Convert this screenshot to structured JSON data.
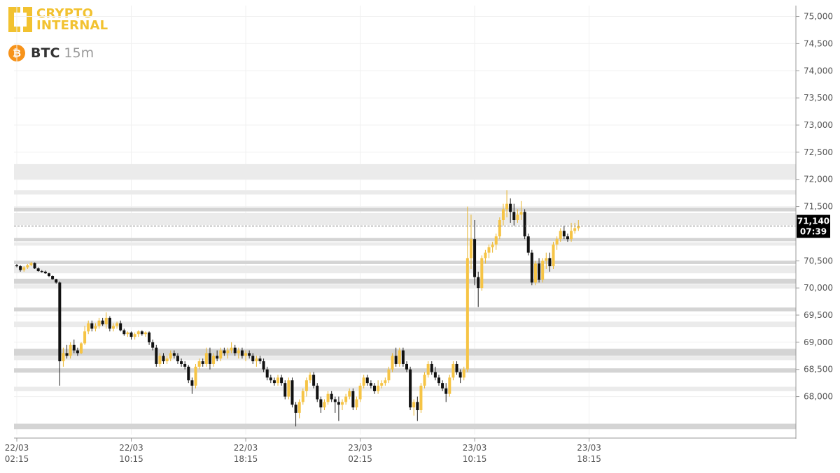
{
  "brand": {
    "line1": "CRYPTO",
    "line2": "INTERNAL",
    "color": "#f2c230"
  },
  "symbol": {
    "name": "BTC",
    "timeframe": "15m",
    "coin_icon": "bitcoin-icon",
    "coin_glyph": "₿"
  },
  "colors": {
    "up": "#f6c445",
    "down": "#111111",
    "zone": "#d4d4d4",
    "zone_light": "#ebebeb"
  },
  "current": {
    "price": "71,140",
    "countdown": "07:39"
  },
  "chart_data": {
    "type": "candlestick",
    "ylim": [
      67300,
      75200
    ],
    "y_ticks": [
      "75,000",
      "74,500",
      "74,000",
      "73,500",
      "73,000",
      "72,500",
      "72,000",
      "71,500",
      "70,500",
      "70,000",
      "69,500",
      "69,000",
      "68,500",
      "68,000"
    ],
    "y_tick_values": [
      75000,
      74500,
      74000,
      73500,
      73000,
      72500,
      72000,
      71500,
      70500,
      70000,
      69500,
      69000,
      68500,
      68000
    ],
    "x_ticks": [
      {
        "date": "22/03",
        "time": "02:15",
        "index": 0
      },
      {
        "date": "22/03",
        "time": "10:15",
        "index": 32
      },
      {
        "date": "22/03",
        "time": "18:15",
        "index": 64
      },
      {
        "date": "23/03",
        "time": "02:15",
        "index": 96
      },
      {
        "date": "23/03",
        "time": "10:15",
        "index": 128
      },
      {
        "date": "23/03",
        "time": "18:15",
        "index": 160
      }
    ],
    "zones": [
      {
        "low": 72000,
        "high": 72280,
        "strength": "light"
      },
      {
        "low": 71720,
        "high": 71800,
        "strength": "light"
      },
      {
        "low": 71410,
        "high": 71480,
        "strength": "strong"
      },
      {
        "low": 71160,
        "high": 71380,
        "strength": "light"
      },
      {
        "low": 70860,
        "high": 70920,
        "strength": "strong"
      },
      {
        "low": 70780,
        "high": 70840,
        "strength": "light"
      },
      {
        "low": 70440,
        "high": 70500,
        "strength": "strong"
      },
      {
        "low": 70270,
        "high": 70410,
        "strength": "light"
      },
      {
        "low": 70080,
        "high": 70170,
        "strength": "strong"
      },
      {
        "low": 69990,
        "high": 70070,
        "strength": "light"
      },
      {
        "low": 69570,
        "high": 69640,
        "strength": "strong"
      },
      {
        "low": 69280,
        "high": 69380,
        "strength": "light"
      },
      {
        "low": 68750,
        "high": 68880,
        "strength": "strong"
      },
      {
        "low": 68670,
        "high": 68740,
        "strength": "light"
      },
      {
        "low": 68440,
        "high": 68520,
        "strength": "strong"
      },
      {
        "low": 68100,
        "high": 68180,
        "strength": "light"
      },
      {
        "low": 67400,
        "high": 67500,
        "strength": "strong"
      }
    ],
    "candles": [
      [
        70420,
        70440,
        70380,
        70400
      ],
      [
        70400,
        70420,
        70300,
        70330
      ],
      [
        70330,
        70400,
        70300,
        70380
      ],
      [
        70380,
        70440,
        70350,
        70420
      ],
      [
        70420,
        70480,
        70400,
        70460
      ],
      [
        70460,
        70470,
        70350,
        70360
      ],
      [
        70360,
        70380,
        70300,
        70310
      ],
      [
        70310,
        70330,
        70280,
        70300
      ],
      [
        70300,
        70320,
        70260,
        70270
      ],
      [
        70270,
        70280,
        70200,
        70220
      ],
      [
        70220,
        70230,
        70150,
        70160
      ],
      [
        70160,
        70170,
        70080,
        70100
      ],
      [
        70100,
        70120,
        68200,
        68650
      ],
      [
        68650,
        68900,
        68550,
        68800
      ],
      [
        68800,
        68950,
        68700,
        68750
      ],
      [
        68750,
        69000,
        68700,
        68950
      ],
      [
        68950,
        69050,
        68800,
        68850
      ],
      [
        68850,
        68900,
        68750,
        68800
      ],
      [
        68800,
        69000,
        68780,
        68980
      ],
      [
        68980,
        69300,
        68950,
        69200
      ],
      [
        69200,
        69400,
        69150,
        69350
      ],
      [
        69350,
        69400,
        69200,
        69250
      ],
      [
        69250,
        69350,
        69200,
        69300
      ],
      [
        69300,
        69450,
        69250,
        69400
      ],
      [
        69400,
        69450,
        69300,
        69330
      ],
      [
        69330,
        69550,
        69250,
        69450
      ],
      [
        69450,
        69480,
        69200,
        69250
      ],
      [
        69250,
        69350,
        69200,
        69300
      ],
      [
        69300,
        69380,
        69250,
        69350
      ],
      [
        69350,
        69400,
        69200,
        69220
      ],
      [
        69220,
        69250,
        69120,
        69150
      ],
      [
        69150,
        69200,
        69100,
        69180
      ],
      [
        69180,
        69200,
        69050,
        69100
      ],
      [
        69100,
        69180,
        69050,
        69150
      ],
      [
        69150,
        69220,
        69100,
        69200
      ],
      [
        69200,
        69220,
        69120,
        69150
      ],
      [
        69150,
        69200,
        69100,
        69180
      ],
      [
        69180,
        69200,
        68950,
        69000
      ],
      [
        69000,
        69050,
        68850,
        68900
      ],
      [
        68900,
        68950,
        68550,
        68600
      ],
      [
        68600,
        68800,
        68550,
        68750
      ],
      [
        68750,
        68800,
        68600,
        68650
      ],
      [
        68650,
        68750,
        68600,
        68700
      ],
      [
        68700,
        68850,
        68650,
        68800
      ],
      [
        68800,
        68850,
        68700,
        68750
      ],
      [
        68750,
        68800,
        68600,
        68650
      ],
      [
        68650,
        68700,
        68550,
        68600
      ],
      [
        68600,
        68650,
        68500,
        68550
      ],
      [
        68550,
        68580,
        68250,
        68300
      ],
      [
        68300,
        68350,
        68050,
        68200
      ],
      [
        68200,
        68600,
        68150,
        68550
      ],
      [
        68550,
        68700,
        68500,
        68650
      ],
      [
        68650,
        68700,
        68550,
        68600
      ],
      [
        68600,
        68900,
        68550,
        68800
      ],
      [
        68800,
        68900,
        68500,
        68600
      ],
      [
        68600,
        68800,
        68550,
        68750
      ],
      [
        68750,
        68850,
        68650,
        68700
      ],
      [
        68700,
        68900,
        68650,
        68850
      ],
      [
        68850,
        68900,
        68750,
        68800
      ],
      [
        68800,
        68900,
        68700,
        68850
      ],
      [
        68850,
        69000,
        68800,
        68900
      ],
      [
        68900,
        68950,
        68750,
        68800
      ],
      [
        68800,
        68900,
        68700,
        68850
      ],
      [
        68850,
        68900,
        68700,
        68750
      ],
      [
        68750,
        68850,
        68650,
        68800
      ],
      [
        68800,
        68850,
        68700,
        68750
      ],
      [
        68750,
        68800,
        68600,
        68650
      ],
      [
        68650,
        68750,
        68550,
        68700
      ],
      [
        68700,
        68750,
        68600,
        68650
      ],
      [
        68650,
        68700,
        68450,
        68500
      ],
      [
        68500,
        68550,
        68300,
        68350
      ],
      [
        68350,
        68400,
        68250,
        68300
      ],
      [
        68300,
        68350,
        68200,
        68250
      ],
      [
        68250,
        68400,
        68200,
        68350
      ],
      [
        68350,
        68400,
        68200,
        68250
      ],
      [
        68250,
        68300,
        67950,
        68000
      ],
      [
        68000,
        68350,
        67950,
        68300
      ],
      [
        68300,
        68350,
        67800,
        67850
      ],
      [
        67850,
        67900,
        67450,
        67700
      ],
      [
        67700,
        67950,
        67600,
        67900
      ],
      [
        67900,
        68150,
        67850,
        68100
      ],
      [
        68100,
        68350,
        68000,
        68300
      ],
      [
        68300,
        68450,
        68250,
        68400
      ],
      [
        68400,
        68450,
        68150,
        68200
      ],
      [
        68200,
        68250,
        67900,
        67950
      ],
      [
        67950,
        68000,
        67700,
        67800
      ],
      [
        67800,
        67950,
        67750,
        67900
      ],
      [
        67900,
        68100,
        67850,
        68050
      ],
      [
        68050,
        68100,
        67900,
        67950
      ],
      [
        67950,
        68000,
        67700,
        67900
      ],
      [
        67900,
        68000,
        67550,
        67850
      ],
      [
        67850,
        67950,
        67750,
        67900
      ],
      [
        67900,
        68050,
        67850,
        68000
      ],
      [
        68000,
        68150,
        67950,
        68100
      ],
      [
        68100,
        68150,
        67750,
        67800
      ],
      [
        67800,
        68000,
        67750,
        67950
      ],
      [
        67950,
        68250,
        67900,
        68200
      ],
      [
        68200,
        68400,
        68150,
        68350
      ],
      [
        68350,
        68400,
        68200,
        68250
      ],
      [
        68250,
        68300,
        68150,
        68200
      ],
      [
        68200,
        68250,
        68050,
        68100
      ],
      [
        68100,
        68300,
        68050,
        68200
      ],
      [
        68200,
        68300,
        68150,
        68250
      ],
      [
        68250,
        68350,
        68200,
        68300
      ],
      [
        68300,
        68550,
        68250,
        68500
      ],
      [
        68500,
        68800,
        68450,
        68750
      ],
      [
        68750,
        68900,
        68550,
        68600
      ],
      [
        68600,
        68900,
        68550,
        68850
      ],
      [
        68850,
        68900,
        68550,
        68600
      ],
      [
        68600,
        68650,
        68450,
        68500
      ],
      [
        68500,
        68550,
        67750,
        67800
      ],
      [
        67800,
        67950,
        67650,
        67900
      ],
      [
        67900,
        68000,
        67550,
        67750
      ],
      [
        67750,
        68250,
        67700,
        68200
      ],
      [
        68200,
        68450,
        68150,
        68400
      ],
      [
        68400,
        68650,
        68350,
        68600
      ],
      [
        68600,
        68650,
        68400,
        68450
      ],
      [
        68450,
        68550,
        68300,
        68350
      ],
      [
        68350,
        68400,
        68200,
        68250
      ],
      [
        68250,
        68300,
        68100,
        68150
      ],
      [
        68150,
        68250,
        67900,
        68050
      ],
      [
        68050,
        68400,
        68000,
        68350
      ],
      [
        68350,
        68650,
        68300,
        68600
      ],
      [
        68600,
        68650,
        68400,
        68450
      ],
      [
        68450,
        68500,
        68250,
        68350
      ],
      [
        68350,
        68550,
        68300,
        68500
      ],
      [
        68500,
        71500,
        68450,
        70550
      ],
      [
        70550,
        71350,
        70350,
        70900
      ],
      [
        70900,
        71250,
        70050,
        70200
      ],
      [
        70200,
        70300,
        69650,
        70000
      ],
      [
        70000,
        70600,
        69950,
        70550
      ],
      [
        70550,
        70700,
        70450,
        70650
      ],
      [
        70650,
        70800,
        70550,
        70750
      ],
      [
        70750,
        70850,
        70650,
        70800
      ],
      [
        70800,
        71000,
        70700,
        70950
      ],
      [
        70950,
        71300,
        70900,
        71250
      ],
      [
        71250,
        71550,
        71150,
        71450
      ],
      [
        71450,
        71800,
        71300,
        71550
      ],
      [
        71550,
        71650,
        71200,
        71400
      ],
      [
        71400,
        71550,
        71150,
        71250
      ],
      [
        71250,
        71450,
        71200,
        71350
      ],
      [
        71350,
        71600,
        71250,
        71400
      ],
      [
        71400,
        71450,
        70900,
        70950
      ],
      [
        70950,
        71000,
        70600,
        70650
      ],
      [
        70650,
        70700,
        70050,
        70100
      ],
      [
        70100,
        70500,
        70050,
        70450
      ],
      [
        70450,
        70550,
        70100,
        70150
      ],
      [
        70150,
        70550,
        70100,
        70500
      ],
      [
        70500,
        70650,
        70350,
        70550
      ],
      [
        70550,
        70650,
        70300,
        70400
      ],
      [
        70400,
        70850,
        70350,
        70800
      ],
      [
        70800,
        70950,
        70700,
        70900
      ],
      [
        70900,
        71100,
        70850,
        71050
      ],
      [
        71050,
        71150,
        70900,
        70950
      ],
      [
        70950,
        71000,
        70850,
        70900
      ],
      [
        70900,
        71200,
        70850,
        71050
      ],
      [
        71050,
        71200,
        71000,
        71100
      ],
      [
        71100,
        71250,
        71050,
        71140
      ]
    ]
  }
}
